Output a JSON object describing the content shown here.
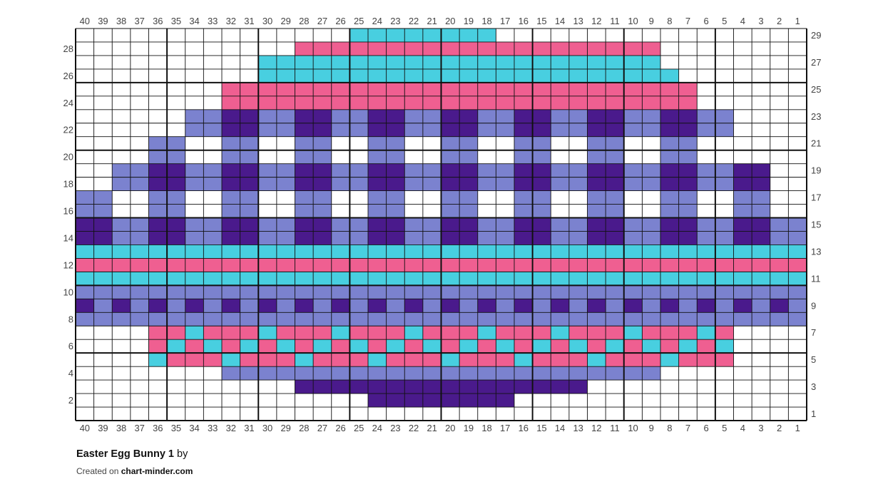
{
  "pattern": {
    "title": "Easter Egg Bunny 1",
    "by_label": "by",
    "created_on_label": "Created on",
    "site": "chart-minder.com"
  },
  "colors": {
    "W": "#ffffff",
    "C": "#48cfe0",
    "P": "#ef5f91",
    "L": "#7b82cf",
    "D": "#4a1a8c"
  },
  "chart_data": {
    "type": "table",
    "columns": 40,
    "rows": 29,
    "column_labels": [
      "40",
      "39",
      "38",
      "37",
      "36",
      "35",
      "34",
      "33",
      "32",
      "31",
      "30",
      "29",
      "28",
      "27",
      "26",
      "25",
      "24",
      "23",
      "22",
      "21",
      "20",
      "19",
      "18",
      "17",
      "16",
      "15",
      "14",
      "13",
      "12",
      "11",
      "10",
      "9",
      "8",
      "7",
      "6",
      "5",
      "4",
      "3",
      "2",
      "1"
    ],
    "left_row_labels": [
      "28",
      "26",
      "24",
      "22",
      "20",
      "18",
      "16",
      "14",
      "12",
      "10",
      "8",
      "6",
      "4",
      "2"
    ],
    "right_row_labels": [
      "29",
      "27",
      "25",
      "23",
      "21",
      "19",
      "17",
      "15",
      "13",
      "11",
      "9",
      "7",
      "5",
      "3",
      "1"
    ],
    "grid_rows_top_to_bottom": [
      "WWWWWWWWWWWWWWWCCCCCCCCWWWWWWWWWWWWWWWWW",
      "WWWWWWWWWWWWPPPPPPPPPPPPPPPPPPPPWWWWWWWW",
      "WWWWWWWWWWCCCCCCCCCCCCCCCCCCCCCCWWWWWWWW",
      "WWWWWWWWWWCCCCCCCCCCCCCCCCCCCCCCCWWWWWWW",
      "WWWWWWWWPPPPPPPPPPPPPPPPPPPPPPPPPPWWWWWW",
      "WWWWWWWWPPPPPPPPPPPPPPPPPPPPPPPPPPWWWWWW",
      "WWWWWWLLDDLLDDLLDDLLDDLLDDLLDDLLDDLLWWWW",
      "WWWWWWLLDDLLDDLLDDLLDDLLDDLLDDLLDDLLWWWW",
      "WWWWLLWWLLWWLLWWLLWWLLWWLLWWLLWWLLWWWWWW",
      "WWWWLLWWLLWWLLWWLLWWLLWWLLWWLLWWLLWWWWWW",
      "WWLLDDLLDDLLDDLLDDLLDDLLDDLLDDLLDDLLDDWW",
      "WWLLDDLLDDLLDDLLDDLLDDLLDDLLDDLLDDLLDDWW",
      "LLWWLLWWLLWWLLWWLLWWLLWWLLWWLLWWLLWWLLWW",
      "LLWWLLWWLLWWLLWWLLWWLLWWLLWWLLWWLLWWLLWW",
      "DDLLDDLLDDLLDDLLDDLLDDLLDDLLDDLLDDLLDDLL",
      "DDLLDDLLDDLLDDLLDDLLDDLLDDLLDDLLDDLLDDLL",
      "CCCCCCCCCCCCCCCCCCCCCCCCCCCCCCCCCCCCCCCC",
      "PPPPPPPPPPPPPPPPPPPPPPPPPPPPPPPPPPPPPPPP",
      "CCCCCCCCCCCCCCCCCCCCCCCCCCCCCCCCCCCCCCCC",
      "LLLLLLLLLLLLLLLLLLLLLLLLLLLLLLLLLLLLLLLL",
      "DLDLDLDLDLDLDLDLDLDLDLDLDLDLDLDLDLDLDLDL",
      "LLLLLLLLLLLLLLLLLLLLLLLLLLLLLLLLLLLLLLLL",
      "WWWWPPCPPPCPPPCPPPCPPPCPPPCPPPCPPPCPWWWW",
      "WWWWPCPCPCPCPCPCPCPCPCPCPCPCPCPCPCPCWWWW",
      "WWWWCPPPCPPPCPPPCPPPCPPPCPPPCPPPCPPPWWWW",
      "WWWWWWWWLLLLLLLLLLLLLLLLLLLLLLLLWWWWWWWW",
      "WWWWWWWWWWWWDDDDDDDDDDDDDDDDWWWWWWWWWWWW",
      "WWWWWWWWWWWWWWWWDDDDDDDDWWWWWWWWWWWWWWWW",
      "WWWWWWWWWWWWWWWWWWWWWWWWWWWWWWWWWWWWWWWW"
    ]
  }
}
